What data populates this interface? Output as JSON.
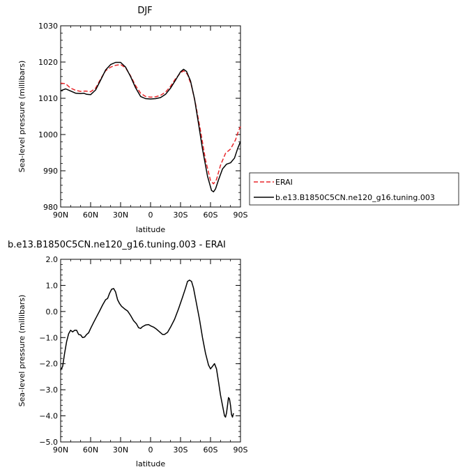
{
  "chart_data": [
    {
      "type": "line",
      "title": "DJF",
      "xlabel": "latitude",
      "ylabel": "Sea-level pressure (millibars)",
      "x_ticks": [
        90,
        60,
        30,
        0,
        -30,
        -60,
        -90
      ],
      "x_tick_labels": [
        "90N",
        "60N",
        "30N",
        "0",
        "30S",
        "60S",
        "90S"
      ],
      "xlim": [
        90,
        -90
      ],
      "y_ticks": [
        980,
        990,
        1000,
        1010,
        1020,
        1030
      ],
      "y_tick_labels": [
        "980",
        "990",
        "1000",
        "1010",
        "1020",
        "1030"
      ],
      "ylim": [
        980,
        1030
      ],
      "legend_position": "right",
      "series": [
        {
          "name": "ERAI",
          "color": "#e8262a",
          "dash": "dashed",
          "points": [
            [
              90,
              1014.2
            ],
            [
              85,
              1014.0
            ],
            [
              80,
              1012.8
            ],
            [
              75,
              1012.2
            ],
            [
              70,
              1011.9
            ],
            [
              65,
              1012.0
            ],
            [
              60,
              1011.8
            ],
            [
              55,
              1012.8
            ],
            [
              50,
              1015.3
            ],
            [
              45,
              1017.6
            ],
            [
              40,
              1018.6
            ],
            [
              35,
              1019.1
            ],
            [
              30,
              1019.3
            ],
            [
              25,
              1018.4
            ],
            [
              20,
              1016.2
            ],
            [
              15,
              1013.5
            ],
            [
              10,
              1011.4
            ],
            [
              5,
              1010.5
            ],
            [
              0,
              1010.3
            ],
            [
              -5,
              1010.4
            ],
            [
              -10,
              1010.8
            ],
            [
              -15,
              1011.7
            ],
            [
              -20,
              1013.3
            ],
            [
              -25,
              1015.4
            ],
            [
              -30,
              1017.0
            ],
            [
              -33,
              1017.6
            ],
            [
              -37,
              1016.6
            ],
            [
              -41,
              1013.4
            ],
            [
              -45,
              1008.5
            ],
            [
              -50,
              1001.0
            ],
            [
              -55,
              993.0
            ],
            [
              -60,
              987.3
            ],
            [
              -63,
              986.4
            ],
            [
              -66,
              987.6
            ],
            [
              -70,
              991.5
            ],
            [
              -75,
              994.8
            ],
            [
              -80,
              996.0
            ],
            [
              -85,
              998.5
            ],
            [
              -88,
              1001.0
            ],
            [
              -90,
              1002.2
            ]
          ]
        },
        {
          "name": "b.e13.B1850C5CN.ne120_g16.tuning.003",
          "color": "#000000",
          "dash": "solid",
          "points": [
            [
              90,
              1012.1
            ],
            [
              85,
              1012.6
            ],
            [
              80,
              1012.0
            ],
            [
              75,
              1011.4
            ],
            [
              70,
              1011.3
            ],
            [
              67,
              1011.4
            ],
            [
              64,
              1011.1
            ],
            [
              60,
              1011.0
            ],
            [
              55,
              1012.3
            ],
            [
              50,
              1015.0
            ],
            [
              45,
              1017.8
            ],
            [
              40,
              1019.3
            ],
            [
              35,
              1019.9
            ],
            [
              30,
              1019.9
            ],
            [
              25,
              1018.6
            ],
            [
              20,
              1016.0
            ],
            [
              15,
              1012.9
            ],
            [
              10,
              1010.5
            ],
            [
              5,
              1009.9
            ],
            [
              0,
              1009.8
            ],
            [
              -5,
              1009.9
            ],
            [
              -10,
              1010.2
            ],
            [
              -15,
              1011.1
            ],
            [
              -20,
              1012.8
            ],
            [
              -25,
              1015.0
            ],
            [
              -30,
              1017.3
            ],
            [
              -33,
              1018.0
            ],
            [
              -36,
              1017.4
            ],
            [
              -40,
              1014.8
            ],
            [
              -44,
              1009.8
            ],
            [
              -48,
              1003.0
            ],
            [
              -52,
              996.0
            ],
            [
              -57,
              988.5
            ],
            [
              -61,
              984.6
            ],
            [
              -63,
              984.2
            ],
            [
              -65,
              985.0
            ],
            [
              -68,
              987.5
            ],
            [
              -72,
              990.5
            ],
            [
              -76,
              991.8
            ],
            [
              -80,
              992.2
            ],
            [
              -84,
              993.5
            ],
            [
              -87,
              996.0
            ],
            [
              -90,
              998.1
            ]
          ]
        }
      ]
    },
    {
      "type": "line",
      "title": "b.e13.B1850C5CN.ne120_g16.tuning.003 - ERAI",
      "xlabel": "latitude",
      "ylabel": "Sea-level pressure (millibars)",
      "x_ticks": [
        90,
        60,
        30,
        0,
        -30,
        -60,
        -90
      ],
      "x_tick_labels": [
        "90N",
        "60N",
        "30N",
        "0",
        "30S",
        "60S",
        "90S"
      ],
      "xlim": [
        90,
        -90
      ],
      "y_ticks": [
        2.0,
        1.0,
        0.0,
        -1.0,
        -2.0,
        -3.0,
        -4.0,
        -5.0
      ],
      "y_tick_labels": [
        "2.0",
        "1.0",
        "0.0",
        "−1.0",
        "−2.0",
        "−3.0",
        "−4.0",
        "−5.0"
      ],
      "ylim": [
        -5,
        2
      ],
      "series": [
        {
          "color": "#000000",
          "dash": "solid",
          "points": [
            [
              90,
              -2.25
            ],
            [
              88,
              -2.1
            ],
            [
              86,
              -1.6
            ],
            [
              84,
              -1.15
            ],
            [
              82,
              -0.85
            ],
            [
              80,
              -0.72
            ],
            [
              78,
              -0.78
            ],
            [
              76,
              -0.72
            ],
            [
              74,
              -0.72
            ],
            [
              72,
              -0.88
            ],
            [
              70,
              -0.9
            ],
            [
              68,
              -1.0
            ],
            [
              66,
              -0.98
            ],
            [
              64,
              -0.88
            ],
            [
              62,
              -0.82
            ],
            [
              60,
              -0.65
            ],
            [
              57,
              -0.42
            ],
            [
              54,
              -0.2
            ],
            [
              51,
              0.02
            ],
            [
              48,
              0.25
            ],
            [
              45,
              0.45
            ],
            [
              43,
              0.5
            ],
            [
              41,
              0.7
            ],
            [
              39,
              0.85
            ],
            [
              37,
              0.88
            ],
            [
              35,
              0.75
            ],
            [
              33,
              0.45
            ],
            [
              31,
              0.3
            ],
            [
              29,
              0.2
            ],
            [
              26,
              0.1
            ],
            [
              23,
              0.02
            ],
            [
              20,
              -0.15
            ],
            [
              17,
              -0.35
            ],
            [
              14,
              -0.48
            ],
            [
              12,
              -0.62
            ],
            [
              10,
              -0.65
            ],
            [
              8,
              -0.58
            ],
            [
              5,
              -0.52
            ],
            [
              2,
              -0.5
            ],
            [
              0,
              -0.55
            ],
            [
              -3,
              -0.6
            ],
            [
              -6,
              -0.68
            ],
            [
              -9,
              -0.78
            ],
            [
              -12,
              -0.88
            ],
            [
              -14,
              -0.88
            ],
            [
              -17,
              -0.8
            ],
            [
              -20,
              -0.6
            ],
            [
              -24,
              -0.3
            ],
            [
              -28,
              0.1
            ],
            [
              -32,
              0.55
            ],
            [
              -35,
              0.9
            ],
            [
              -37,
              1.15
            ],
            [
              -39,
              1.2
            ],
            [
              -41,
              1.15
            ],
            [
              -43,
              0.9
            ],
            [
              -46,
              0.3
            ],
            [
              -49,
              -0.3
            ],
            [
              -52,
              -1.0
            ],
            [
              -55,
              -1.6
            ],
            [
              -58,
              -2.05
            ],
            [
              -60,
              -2.2
            ],
            [
              -62,
              -2.1
            ],
            [
              -64,
              -2.0
            ],
            [
              -66,
              -2.2
            ],
            [
              -68,
              -2.7
            ],
            [
              -70,
              -3.2
            ],
            [
              -72,
              -3.6
            ],
            [
              -74,
              -4.0
            ],
            [
              -75,
              -4.05
            ],
            [
              -76,
              -3.9
            ],
            [
              -77,
              -3.6
            ],
            [
              -78,
              -3.3
            ],
            [
              -79,
              -3.35
            ],
            [
              -80,
              -3.6
            ],
            [
              -81,
              -3.95
            ],
            [
              -82,
              -4.05
            ],
            [
              -83,
              -3.9
            ]
          ]
        }
      ]
    }
  ]
}
